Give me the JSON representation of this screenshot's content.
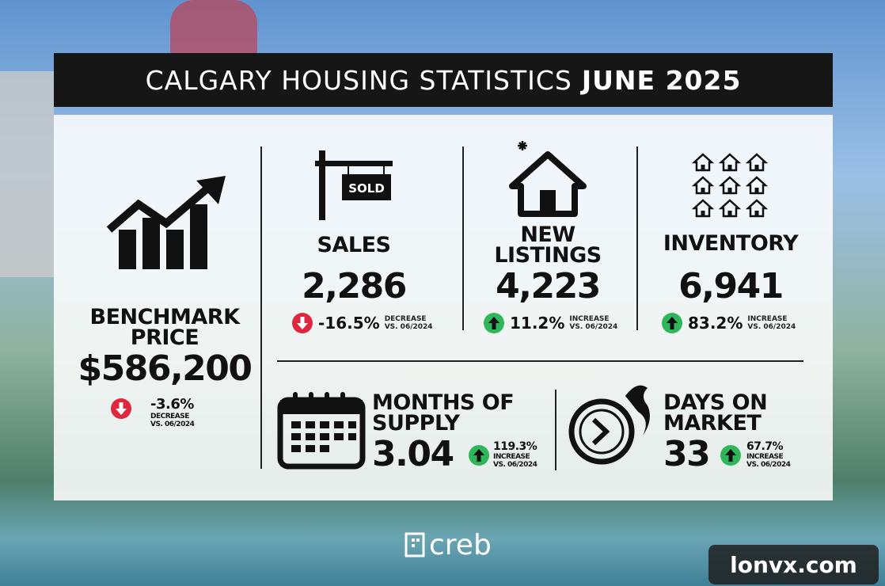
{
  "header": {
    "title": "CALGARY HOUSING STATISTICS",
    "title_emphasis": "JUNE 2025"
  },
  "sold_sign": "SOLD",
  "stats": [
    {
      "label": "BENCHMARK PRICE",
      "value": "$586,200",
      "change": "-3.6%",
      "direction": "DECREASE",
      "comparison": "VS. 06/2024"
    },
    {
      "label": "SALES",
      "value": "2,286",
      "change": "-16.5%",
      "direction": "DECREASE",
      "comparison": "VS. 06/2024"
    },
    {
      "label": "NEW LISTINGS",
      "value": "4,223",
      "change": "11.2%",
      "direction": "INCREASE",
      "comparison": "VS. 06/2024"
    },
    {
      "label": "INVENTORY",
      "value": "6,941",
      "change": "83.2%",
      "direction": "INCREASE",
      "comparison": "VS. 06/2024"
    },
    {
      "label": "MONTHS OF SUPPLY",
      "value": "3.04",
      "change": "119.3%",
      "direction": "INCREASE",
      "comparison": "VS. 06/2024"
    },
    {
      "label": "DAYS ON MARKET",
      "value": "33",
      "change": "67.7%",
      "direction": "INCREASE",
      "comparison": "VS. 06/2024"
    }
  ],
  "logo": "creb",
  "watermark": "lonvx.com"
}
